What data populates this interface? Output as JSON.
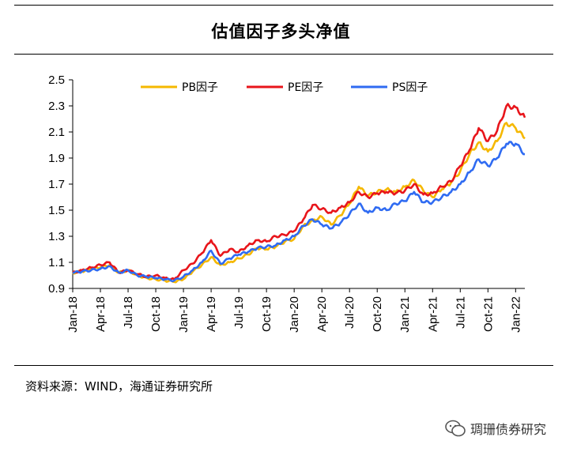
{
  "title": "估值因子多头净值",
  "source": "资料来源：WIND，海通证券研究所",
  "watermark": "琱珊债券研究",
  "chart_data": {
    "type": "line",
    "title": "估值因子多头净值",
    "xlabel": "",
    "ylabel": "",
    "ylim": [
      0.9,
      2.5
    ],
    "yticks": [
      "0.9",
      "1.1",
      "1.3",
      "1.5",
      "1.7",
      "1.9",
      "2.1",
      "2.3",
      "2.5"
    ],
    "xticks": [
      "Jan-18",
      "Apr-18",
      "Jul-18",
      "Oct-18",
      "Jan-19",
      "Apr-19",
      "Jul-19",
      "Oct-19",
      "Jan-20",
      "Apr-20",
      "Jul-20",
      "Oct-20",
      "Jan-21",
      "Apr-21",
      "Jul-21",
      "Oct-21",
      "Jan-22"
    ],
    "x_start": "Jan-18",
    "x_end": "Feb-22",
    "x_months_total": 49,
    "legend_position": "top",
    "series": [
      {
        "name": "PB因子",
        "color": "#F5B800",
        "points": [
          [
            0,
            1.02
          ],
          [
            1,
            1.03
          ],
          [
            2,
            1.05
          ],
          [
            3,
            1.06
          ],
          [
            4,
            1.08
          ],
          [
            5,
            1.02
          ],
          [
            6,
            1.04
          ],
          [
            7,
            1.0
          ],
          [
            8,
            0.98
          ],
          [
            9,
            0.97
          ],
          [
            10,
            0.96
          ],
          [
            11,
            0.95
          ],
          [
            12,
            0.97
          ],
          [
            13,
            1.03
          ],
          [
            14,
            1.08
          ],
          [
            15,
            1.14
          ],
          [
            16,
            1.08
          ],
          [
            17,
            1.1
          ],
          [
            18,
            1.13
          ],
          [
            19,
            1.16
          ],
          [
            20,
            1.21
          ],
          [
            21,
            1.2
          ],
          [
            22,
            1.22
          ],
          [
            23,
            1.26
          ],
          [
            24,
            1.28
          ],
          [
            25,
            1.38
          ],
          [
            26,
            1.42
          ],
          [
            27,
            1.45
          ],
          [
            28,
            1.39
          ],
          [
            29,
            1.46
          ],
          [
            30,
            1.55
          ],
          [
            31,
            1.68
          ],
          [
            32,
            1.61
          ],
          [
            33,
            1.64
          ],
          [
            34,
            1.66
          ],
          [
            35,
            1.64
          ],
          [
            36,
            1.68
          ],
          [
            37,
            1.73
          ],
          [
            38,
            1.65
          ],
          [
            39,
            1.6
          ],
          [
            40,
            1.66
          ],
          [
            41,
            1.71
          ],
          [
            42,
            1.8
          ],
          [
            43,
            1.93
          ],
          [
            44,
            2.02
          ],
          [
            45,
            1.95
          ],
          [
            46,
            2.03
          ],
          [
            47,
            2.17
          ],
          [
            48,
            2.13
          ],
          [
            49,
            2.05
          ]
        ]
      },
      {
        "name": "PE因子",
        "color": "#E8151B",
        "points": [
          [
            0,
            1.02
          ],
          [
            1,
            1.04
          ],
          [
            2,
            1.06
          ],
          [
            3,
            1.08
          ],
          [
            4,
            1.1
          ],
          [
            5,
            1.02
          ],
          [
            6,
            1.04
          ],
          [
            7,
            1.01
          ],
          [
            8,
            0.99
          ],
          [
            9,
            1.0
          ],
          [
            10,
            0.98
          ],
          [
            11,
            0.97
          ],
          [
            12,
            1.04
          ],
          [
            13,
            1.09
          ],
          [
            14,
            1.17
          ],
          [
            15,
            1.27
          ],
          [
            16,
            1.15
          ],
          [
            17,
            1.2
          ],
          [
            18,
            1.18
          ],
          [
            19,
            1.23
          ],
          [
            20,
            1.27
          ],
          [
            21,
            1.26
          ],
          [
            22,
            1.3
          ],
          [
            23,
            1.31
          ],
          [
            24,
            1.34
          ],
          [
            25,
            1.43
          ],
          [
            26,
            1.54
          ],
          [
            27,
            1.51
          ],
          [
            28,
            1.48
          ],
          [
            29,
            1.52
          ],
          [
            30,
            1.56
          ],
          [
            31,
            1.64
          ],
          [
            32,
            1.6
          ],
          [
            33,
            1.63
          ],
          [
            34,
            1.64
          ],
          [
            35,
            1.63
          ],
          [
            36,
            1.65
          ],
          [
            37,
            1.7
          ],
          [
            38,
            1.62
          ],
          [
            39,
            1.63
          ],
          [
            40,
            1.68
          ],
          [
            41,
            1.72
          ],
          [
            42,
            1.84
          ],
          [
            43,
            1.96
          ],
          [
            44,
            2.13
          ],
          [
            45,
            2.03
          ],
          [
            46,
            2.11
          ],
          [
            47,
            2.3
          ],
          [
            48,
            2.29
          ],
          [
            49,
            2.21
          ]
        ]
      },
      {
        "name": "PS因子",
        "color": "#2F6BF2",
        "points": [
          [
            0,
            1.02
          ],
          [
            1,
            1.03
          ],
          [
            2,
            1.04
          ],
          [
            3,
            1.05
          ],
          [
            4,
            1.07
          ],
          [
            5,
            1.02
          ],
          [
            6,
            1.04
          ],
          [
            7,
            1.0
          ],
          [
            8,
            0.99
          ],
          [
            9,
            0.98
          ],
          [
            10,
            0.97
          ],
          [
            11,
            0.96
          ],
          [
            12,
            0.99
          ],
          [
            13,
            1.04
          ],
          [
            14,
            1.1
          ],
          [
            15,
            1.19
          ],
          [
            16,
            1.09
          ],
          [
            17,
            1.13
          ],
          [
            18,
            1.16
          ],
          [
            19,
            1.18
          ],
          [
            20,
            1.21
          ],
          [
            21,
            1.22
          ],
          [
            22,
            1.23
          ],
          [
            23,
            1.27
          ],
          [
            24,
            1.3
          ],
          [
            25,
            1.38
          ],
          [
            26,
            1.43
          ],
          [
            27,
            1.39
          ],
          [
            28,
            1.36
          ],
          [
            29,
            1.4
          ],
          [
            30,
            1.47
          ],
          [
            31,
            1.55
          ],
          [
            32,
            1.48
          ],
          [
            33,
            1.52
          ],
          [
            34,
            1.5
          ],
          [
            35,
            1.55
          ],
          [
            36,
            1.57
          ],
          [
            37,
            1.64
          ],
          [
            38,
            1.56
          ],
          [
            39,
            1.56
          ],
          [
            40,
            1.6
          ],
          [
            41,
            1.64
          ],
          [
            42,
            1.7
          ],
          [
            43,
            1.79
          ],
          [
            44,
            1.89
          ],
          [
            45,
            1.84
          ],
          [
            46,
            1.9
          ],
          [
            47,
            2.01
          ],
          [
            48,
            2.01
          ],
          [
            49,
            1.93
          ]
        ]
      }
    ]
  }
}
